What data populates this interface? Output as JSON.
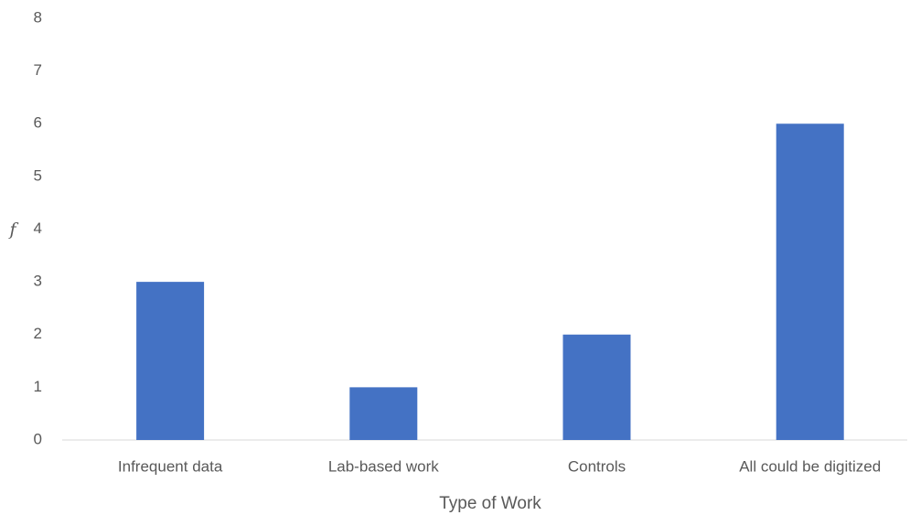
{
  "chart_data": {
    "type": "bar",
    "categories": [
      "Infrequent data",
      "Lab-based work",
      "Controls",
      "All could be digitized"
    ],
    "values": [
      3,
      1,
      2,
      6
    ],
    "color": "#4472c4",
    "xlabel": "Type of Work",
    "ylabel": "f",
    "ylim": [
      0,
      8
    ],
    "yticks": [
      0,
      1,
      2,
      3,
      4,
      5,
      6,
      7,
      8
    ],
    "grid": false
  }
}
